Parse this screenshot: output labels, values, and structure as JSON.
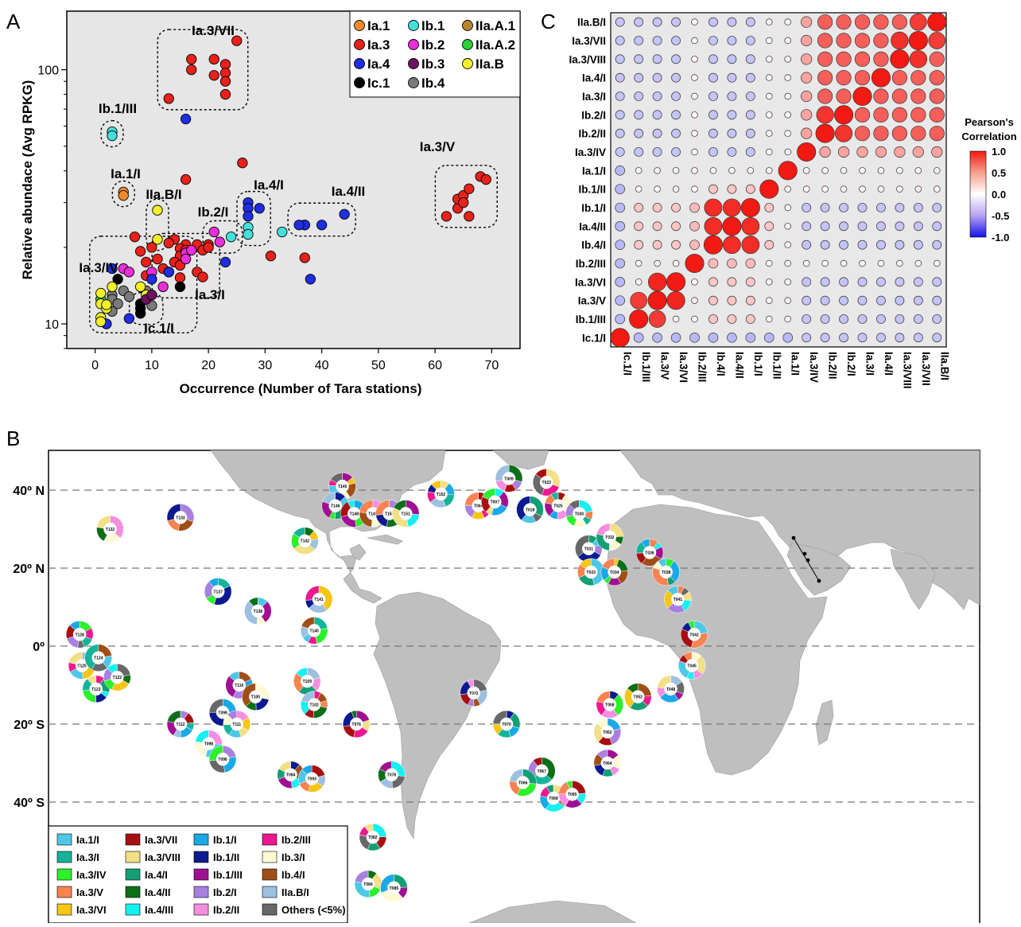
{
  "chart_data": [
    {
      "panel": "A",
      "type": "scatter",
      "xlabel": "Occurrence (Number of Tara stations)",
      "ylabel": "Relative abundace (Avg RPKG)",
      "x_ticks": [
        0,
        10,
        20,
        30,
        40,
        50,
        60,
        70
      ],
      "y_ticks": [
        10,
        100
      ],
      "xlim": [
        -5,
        75
      ],
      "ylim": [
        8,
        170
      ],
      "y_scale": "log",
      "legend_placement": "top-right",
      "colors": {
        "Ia.1": "#f0892c",
        "Ib.1": "#45e0dc",
        "IIa.A.1": "#b8862c",
        "Ia.3": "#e8211b",
        "Ib.2": "#e82fd8",
        "IIa.A.2": "#2ad233",
        "Ia.4": "#1f2ee0",
        "Ib.3": "#6d1260",
        "IIa.B": "#f3ef2b",
        "Ic.1": "#000000",
        "Ib.4": "#7a7a7a"
      },
      "legend": [
        "Ia.1",
        "Ib.1",
        "IIa.A.1",
        "Ia.3",
        "Ib.2",
        "IIa.A.2",
        "Ia.4",
        "Ib.3",
        "IIa.B",
        "Ic.1",
        "Ib.4"
      ],
      "points": [
        {
          "s": "Ia.3",
          "x": 13,
          "y": 77
        },
        {
          "s": "Ia.3",
          "x": 17,
          "y": 110
        },
        {
          "s": "Ia.3",
          "x": 17,
          "y": 100
        },
        {
          "s": "Ia.3",
          "x": 21,
          "y": 110
        },
        {
          "s": "Ia.3",
          "x": 21,
          "y": 95
        },
        {
          "s": "Ia.3",
          "x": 23,
          "y": 105
        },
        {
          "s": "Ia.3",
          "x": 23,
          "y": 97
        },
        {
          "s": "Ia.3",
          "x": 23,
          "y": 90
        },
        {
          "s": "Ia.3",
          "x": 23,
          "y": 80
        },
        {
          "s": "Ia.3",
          "x": 25,
          "y": 130
        },
        {
          "s": "Ia.4",
          "x": 16,
          "y": 64
        },
        {
          "s": "Ib.1",
          "x": 3,
          "y": 57
        },
        {
          "s": "Ib.1",
          "x": 3,
          "y": 55
        },
        {
          "s": "Ia.1",
          "x": 5,
          "y": 33
        },
        {
          "s": "Ia.1",
          "x": 5,
          "y": 32
        },
        {
          "s": "Ia.3",
          "x": 16,
          "y": 37
        },
        {
          "s": "Ia.3",
          "x": 26,
          "y": 43
        },
        {
          "s": "IIa.B",
          "x": 11,
          "y": 28
        },
        {
          "s": "IIa.B",
          "x": 11,
          "y": 21.5
        },
        {
          "s": "Ia.3",
          "x": 62,
          "y": 26.5
        },
        {
          "s": "Ia.3",
          "x": 64,
          "y": 28.5
        },
        {
          "s": "Ia.3",
          "x": 64,
          "y": 31
        },
        {
          "s": "Ia.3",
          "x": 65,
          "y": 32
        },
        {
          "s": "Ia.3",
          "x": 65,
          "y": 30
        },
        {
          "s": "Ia.3",
          "x": 66,
          "y": 34
        },
        {
          "s": "Ia.3",
          "x": 66,
          "y": 26.5
        },
        {
          "s": "Ia.3",
          "x": 68,
          "y": 38
        },
        {
          "s": "Ia.3",
          "x": 69,
          "y": 37
        },
        {
          "s": "Ia.4",
          "x": 27,
          "y": 30
        },
        {
          "s": "Ia.4",
          "x": 27,
          "y": 28.5
        },
        {
          "s": "Ia.4",
          "x": 27,
          "y": 26.5
        },
        {
          "s": "Ia.4",
          "x": 29,
          "y": 28.5
        },
        {
          "s": "Ib.1",
          "x": 27,
          "y": 24
        },
        {
          "s": "Ib.1",
          "x": 27,
          "y": 22.5
        },
        {
          "s": "Ib.1",
          "x": 33,
          "y": 23
        },
        {
          "s": "Ib.1",
          "x": 37,
          "y": 24.5
        },
        {
          "s": "Ia.4",
          "x": 37,
          "y": 24.5
        },
        {
          "s": "Ia.4",
          "x": 36,
          "y": 24.5
        },
        {
          "s": "Ia.4",
          "x": 40,
          "y": 24.5
        },
        {
          "s": "Ia.4",
          "x": 44,
          "y": 27
        },
        {
          "s": "Ia.4",
          "x": 23,
          "y": 17.5
        },
        {
          "s": "Ia.3",
          "x": 31,
          "y": 18.5
        },
        {
          "s": "Ia.3",
          "x": 37,
          "y": 18.2
        },
        {
          "s": "Ia.4",
          "x": 38,
          "y": 15
        },
        {
          "s": "Ib.2",
          "x": 21,
          "y": 23
        },
        {
          "s": "Ib.2",
          "x": 22,
          "y": 21
        },
        {
          "s": "Ib.1",
          "x": 24,
          "y": 22
        },
        {
          "s": "Ia.3",
          "x": 16,
          "y": 20.5
        },
        {
          "s": "Ia.3",
          "x": 20,
          "y": 20.5
        },
        {
          "s": "Ia.3",
          "x": 14,
          "y": 21.5
        },
        {
          "s": "Ia.3",
          "x": 13,
          "y": 20.8
        },
        {
          "s": "Ia.3",
          "x": 15,
          "y": 19.8
        },
        {
          "s": "Ia.3",
          "x": 16,
          "y": 19.5
        },
        {
          "s": "Ia.3",
          "x": 18,
          "y": 20.5
        },
        {
          "s": "Ia.3",
          "x": 19,
          "y": 19.5
        },
        {
          "s": "Ia.3",
          "x": 15,
          "y": 18.5
        },
        {
          "s": "Ia.3",
          "x": 14,
          "y": 17.5
        },
        {
          "s": "Ia.3",
          "x": 15,
          "y": 17
        },
        {
          "s": "Ib.2",
          "x": 16,
          "y": 19
        },
        {
          "s": "Ib.2",
          "x": 17,
          "y": 19.5
        },
        {
          "s": "Ib.2",
          "x": 16,
          "y": 18
        },
        {
          "s": "Ia.3",
          "x": 18,
          "y": 16
        },
        {
          "s": "Ia.3",
          "x": 19,
          "y": 15.3
        },
        {
          "s": "Ia.3",
          "x": 20,
          "y": 20
        },
        {
          "s": "Ia.3",
          "x": 7,
          "y": 22
        },
        {
          "s": "Ia.3",
          "x": 10,
          "y": 20
        },
        {
          "s": "Ia.3",
          "x": 8,
          "y": 19.3
        },
        {
          "s": "Ia.3",
          "x": 9,
          "y": 17.5
        },
        {
          "s": "Ia.3",
          "x": 11,
          "y": 18
        },
        {
          "s": "Ia.3",
          "x": 12,
          "y": 16.5
        },
        {
          "s": "Ia.3",
          "x": 9,
          "y": 15.5
        },
        {
          "s": "Ia.3",
          "x": 15,
          "y": 15.2
        },
        {
          "s": "Ia.3",
          "x": 13,
          "y": 16
        },
        {
          "s": "Ib.2",
          "x": 5,
          "y": 16.5
        },
        {
          "s": "Ib.2",
          "x": 6,
          "y": 16
        },
        {
          "s": "Ib.2",
          "x": 10,
          "y": 16
        },
        {
          "s": "Ib.2",
          "x": 12,
          "y": 14
        },
        {
          "s": "Ib.2",
          "x": 13,
          "y": 16
        },
        {
          "s": "Ia.4",
          "x": 3,
          "y": 16.5
        },
        {
          "s": "Ia.4",
          "x": 10,
          "y": 15
        },
        {
          "s": "Ia.4",
          "x": 13,
          "y": 16
        },
        {
          "s": "Ia.4",
          "x": 6,
          "y": 10.5
        },
        {
          "s": "Ia.4",
          "x": 2,
          "y": 10
        },
        {
          "s": "Ic.1",
          "x": 4,
          "y": 15
        },
        {
          "s": "Ic.1",
          "x": 8,
          "y": 12
        },
        {
          "s": "Ic.1",
          "x": 8,
          "y": 11.5
        },
        {
          "s": "Ic.1",
          "x": 8,
          "y": 11
        },
        {
          "s": "Ic.1",
          "x": 15,
          "y": 14
        },
        {
          "s": "Ib.4",
          "x": 3,
          "y": 13
        },
        {
          "s": "Ib.4",
          "x": 3,
          "y": 12.5
        },
        {
          "s": "Ib.4",
          "x": 4,
          "y": 12
        },
        {
          "s": "Ib.4",
          "x": 5,
          "y": 13.5
        },
        {
          "s": "Ib.4",
          "x": 6,
          "y": 12.8
        },
        {
          "s": "Ib.4",
          "x": 9,
          "y": 13.5
        },
        {
          "s": "Ib.4",
          "x": 10,
          "y": 11.8
        },
        {
          "s": "Ib.4",
          "x": 3,
          "y": 11.2
        },
        {
          "s": "IIa.A.2",
          "x": 1,
          "y": 12.5
        },
        {
          "s": "IIa.B",
          "x": 1,
          "y": 13.2
        },
        {
          "s": "IIa.B",
          "x": 1,
          "y": 12
        },
        {
          "s": "IIa.B",
          "x": 1,
          "y": 10.6
        },
        {
          "s": "IIa.B",
          "x": 1,
          "y": 10.2
        },
        {
          "s": "IIa.B",
          "x": 2,
          "y": 11.5
        },
        {
          "s": "IIa.B",
          "x": 3,
          "y": 14
        },
        {
          "s": "IIa.B",
          "x": 2,
          "y": 11.9
        },
        {
          "s": "IIa.B",
          "x": 8,
          "y": 14
        },
        {
          "s": "IIa.B",
          "x": 9,
          "y": 13
        },
        {
          "s": "Ib.3",
          "x": 9,
          "y": 12.5
        },
        {
          "s": "Ib.3",
          "x": 10,
          "y": 13
        }
      ],
      "cluster_labels": [
        {
          "text": "Ia.3/VII"
        },
        {
          "text": "Ib.1/III"
        },
        {
          "text": "Ia.1/I"
        },
        {
          "text": "IIa.B/I"
        },
        {
          "text": "Ia.4/I"
        },
        {
          "text": "Ib.2/I"
        },
        {
          "text": "Ia.4/II"
        },
        {
          "text": "Ia.3/V"
        },
        {
          "text": "Ia.3/IV"
        },
        {
          "text": "Ia.3/I"
        },
        {
          "text": "Ic.1/I"
        }
      ]
    },
    {
      "panel": "C",
      "type": "heatmap",
      "title": "Pearson's Correlation",
      "colorbar_ticks": [
        "1.0",
        "0.5",
        "0.0",
        "-0.5",
        "-1.0"
      ],
      "colorbar_range": [
        -1,
        1
      ],
      "rows": [
        "IIa.B/I",
        "Ia.3/VII",
        "Ia.3/VIII",
        "Ia.4/I",
        "Ia.3/I",
        "Ib.2/I",
        "Ib.2/II",
        "Ia.3/IV",
        "Ia.1/I",
        "Ib.1/II",
        "Ib.1/I",
        "Ia.4/II",
        "Ib.4/I",
        "Ib.2/III",
        "Ia.3/VI",
        "Ia.3/V",
        "Ib.1/III",
        "Ic.1/I"
      ],
      "columns": [
        "Ic.1/I",
        "Ib.1/III",
        "Ia.3/V",
        "Ia.3/VI",
        "Ib.2/III",
        "Ib.4/I",
        "Ia.4/II",
        "Ib.1/I",
        "Ib.1/II",
        "Ia.1/I",
        "Ia.3/IV",
        "Ib.2/II",
        "Ib.2/I",
        "Ia.3/I",
        "Ia.4/I",
        "Ia.3/VIII",
        "Ia.3/VII",
        "IIa.B/I"
      ]
    },
    {
      "panel": "B",
      "type": "pie",
      "lat_labels": [
        "40º N",
        "20º N",
        "0º",
        "20º S",
        "40º S"
      ],
      "lat_values": [
        40,
        20,
        0,
        -20,
        -40
      ],
      "legend_items": [
        {
          "label": "Ia.1/I",
          "color": "#4ec7e6"
        },
        {
          "label": "Ia.3/VII",
          "color": "#a80f12"
        },
        {
          "label": "Ib.1/I",
          "color": "#1ba8e6"
        },
        {
          "label": "Ib.2/III",
          "color": "#ef178f"
        },
        {
          "label": "Ia.3/I",
          "color": "#15b39a"
        },
        {
          "label": "Ia.3/VIII",
          "color": "#f2df86"
        },
        {
          "label": "Ib.1/II",
          "color": "#0b1a8f"
        },
        {
          "label": "Ib.3/I",
          "color": "#fdf9d2"
        },
        {
          "label": "Ia.3/IV",
          "color": "#2cf02a"
        },
        {
          "label": "Ia.4/I",
          "color": "#139e74"
        },
        {
          "label": "Ib.1/III",
          "color": "#a01093"
        },
        {
          "label": "Ib.4/I",
          "color": "#a04e18"
        },
        {
          "label": "Ia.3/V",
          "color": "#f78350"
        },
        {
          "label": "Ia.4/II",
          "color": "#0c6f18"
        },
        {
          "label": "Ib.2/I",
          "color": "#a880e0"
        },
        {
          "label": "IIa.B/I",
          "color": "#9dbfe0"
        },
        {
          "label": "Ia.3/VI",
          "color": "#f6c516"
        },
        {
          "label": "Ia.4/III",
          "color": "#16f0f0"
        },
        {
          "label": "Ib.2/II",
          "color": "#f68ee0"
        },
        {
          "label": "Others (<5%)",
          "color": "#686868"
        }
      ],
      "stations": [
        {
          "id": "T132",
          "lat": 30,
          "lon": -170
        },
        {
          "id": "T133",
          "lat": 33,
          "lon": -140
        },
        {
          "id": "T145",
          "lat": 41,
          "lon": -71
        },
        {
          "id": "T146",
          "lat": 36,
          "lon": -74
        },
        {
          "id": "T148",
          "lat": 34,
          "lon": -66
        },
        {
          "id": "T149",
          "lat": 34,
          "lon": -58
        },
        {
          "id": "T150",
          "lat": 34,
          "lon": -51
        },
        {
          "id": "T151",
          "lat": 34,
          "lon": -44
        },
        {
          "id": "T152",
          "lat": 39,
          "lon": -29
        },
        {
          "id": "T004",
          "lat": 36,
          "lon": -13
        },
        {
          "id": "T007",
          "lat": 37,
          "lon": -6
        },
        {
          "id": "T009",
          "lat": 43,
          "lon": 0
        },
        {
          "id": "T018",
          "lat": 35,
          "lon": 9
        },
        {
          "id": "T023",
          "lat": 42,
          "lon": 16
        },
        {
          "id": "T025",
          "lat": 36,
          "lon": 21
        },
        {
          "id": "T030",
          "lat": 34,
          "lon": 30
        },
        {
          "id": "T142",
          "lat": 27,
          "lon": -87
        },
        {
          "id": "T031",
          "lat": 25,
          "lon": 34
        },
        {
          "id": "T032",
          "lat": 28,
          "lon": 43
        },
        {
          "id": "T033",
          "lat": 19,
          "lon": 35
        },
        {
          "id": "T034",
          "lat": 19,
          "lon": 45
        },
        {
          "id": "T036",
          "lat": 24,
          "lon": 60
        },
        {
          "id": "T038",
          "lat": 19,
          "lon": 67
        },
        {
          "id": "T137",
          "lat": 14,
          "lon": -124
        },
        {
          "id": "T138",
          "lat": 9,
          "lon": -107
        },
        {
          "id": "T141",
          "lat": 12,
          "lon": -81
        },
        {
          "id": "T041",
          "lat": 12,
          "lon": 72
        },
        {
          "id": "T128",
          "lat": 3,
          "lon": -183
        },
        {
          "id": "T140",
          "lat": 4,
          "lon": -83
        },
        {
          "id": "T042",
          "lat": 3,
          "lon": 79
        },
        {
          "id": "T125",
          "lat": -5,
          "lon": -182
        },
        {
          "id": "T124",
          "lat": -3,
          "lon": -175
        },
        {
          "id": "T045",
          "lat": -5,
          "lon": 78
        },
        {
          "id": "T123",
          "lat": -11,
          "lon": -176
        },
        {
          "id": "T122",
          "lat": -8,
          "lon": -167
        },
        {
          "id": "T109",
          "lat": -9,
          "lon": -86
        },
        {
          "id": "T110",
          "lat": -10,
          "lon": -115
        },
        {
          "id": "T100",
          "lat": -13,
          "lon": -108
        },
        {
          "id": "T102",
          "lat": -15,
          "lon": -83
        },
        {
          "id": "T072",
          "lat": -12,
          "lon": -15
        },
        {
          "id": "T048",
          "lat": -11,
          "lon": 69
        },
        {
          "id": "T052",
          "lat": -13,
          "lon": 55
        },
        {
          "id": "T058",
          "lat": -15,
          "lon": 43
        },
        {
          "id": "T099",
          "lat": -17,
          "lon": -122
        },
        {
          "id": "T111",
          "lat": -20,
          "lon": -116
        },
        {
          "id": "T112",
          "lat": -20,
          "lon": -140
        },
        {
          "id": "T076",
          "lat": -20,
          "lon": -65
        },
        {
          "id": "T070",
          "lat": -20,
          "lon": -1
        },
        {
          "id": "T062",
          "lat": -22,
          "lon": 42
        },
        {
          "id": "T098",
          "lat": -25,
          "lon": -128
        },
        {
          "id": "T096",
          "lat": -29,
          "lon": -122
        },
        {
          "id": "T064",
          "lat": -30,
          "lon": 42
        },
        {
          "id": "T094",
          "lat": -33,
          "lon": -93
        },
        {
          "id": "T093",
          "lat": -34,
          "lon": -84
        },
        {
          "id": "T078",
          "lat": -33,
          "lon": -50
        },
        {
          "id": "T067",
          "lat": -32,
          "lon": 14
        },
        {
          "id": "T066",
          "lat": -35,
          "lon": 6
        },
        {
          "id": "T068",
          "lat": -39,
          "lon": 19
        },
        {
          "id": "T065",
          "lat": -38,
          "lon": 27
        },
        {
          "id": "T082",
          "lat": -49,
          "lon": -58
        },
        {
          "id": "T084",
          "lat": -61,
          "lon": -60
        },
        {
          "id": "T085",
          "lat": -62,
          "lon": -49
        }
      ]
    }
  ]
}
